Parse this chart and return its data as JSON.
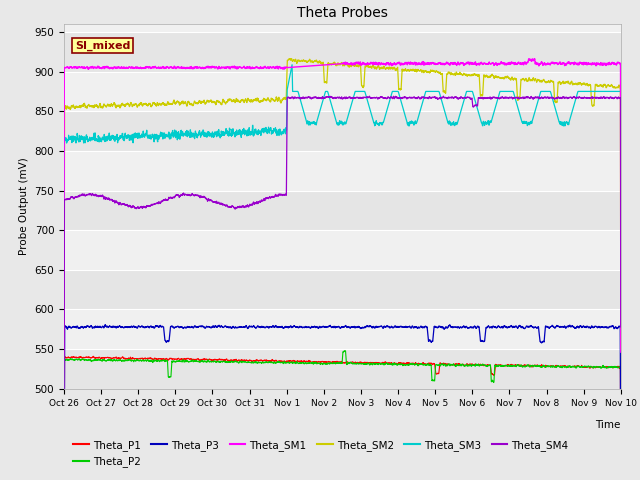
{
  "title": "Theta Probes",
  "xlabel": "Time",
  "ylabel": "Probe Output (mV)",
  "ylim": [
    500,
    960
  ],
  "yticks": [
    500,
    550,
    600,
    650,
    700,
    750,
    800,
    850,
    900,
    950
  ],
  "annotation_text": "SI_mixed",
  "annotation_color": "#8B0000",
  "annotation_bg": "#FFFF99",
  "annotation_border": "#8B0000",
  "bg_color": "#E8E8E8",
  "plot_bg": "#F0F0F0",
  "series_colors": {
    "Theta_P1": "#FF0000",
    "Theta_P2": "#00CC00",
    "Theta_P3": "#0000BB",
    "Theta_SM1": "#FF00FF",
    "Theta_SM2": "#CCCC00",
    "Theta_SM3": "#00CCCC",
    "Theta_SM4": "#9900CC"
  },
  "x_tick_labels": [
    "Oct 26",
    "Oct 27",
    "Oct 28",
    "Oct 29",
    "Oct 30",
    "Oct 31",
    "Nov 1",
    "Nov 2",
    "Nov 3",
    "Nov 4",
    "Nov 5",
    "Nov 6",
    "Nov 7",
    "Nov 8",
    "Nov 9",
    "Nov 10"
  ]
}
